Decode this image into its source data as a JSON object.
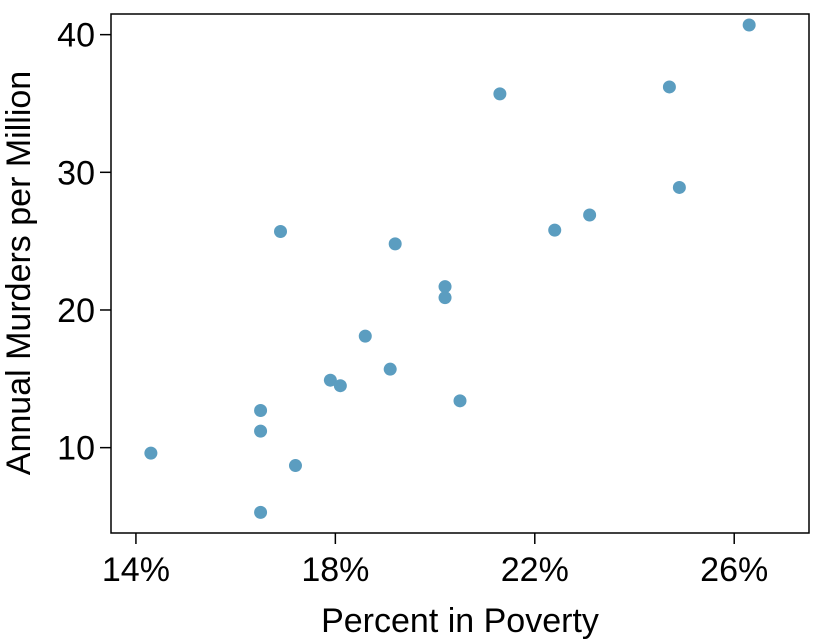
{
  "chart_data": {
    "type": "scatter",
    "xlabel": "Percent in Poverty",
    "ylabel": "Annual Murders per Million",
    "xlim": [
      13.5,
      27.5
    ],
    "ylim": [
      3.8,
      41.5
    ],
    "xticks": [
      14,
      18,
      22,
      26
    ],
    "xtick_labels": [
      "14%",
      "18%",
      "22%",
      "26%"
    ],
    "yticks": [
      10,
      20,
      30,
      40
    ],
    "ytick_labels": [
      "10",
      "20",
      "30",
      "40"
    ],
    "grid": false,
    "point_color": "#5b9dc0",
    "points": [
      {
        "x": 14.3,
        "y": 9.6
      },
      {
        "x": 16.5,
        "y": 12.7
      },
      {
        "x": 16.5,
        "y": 11.2
      },
      {
        "x": 16.5,
        "y": 5.3
      },
      {
        "x": 16.9,
        "y": 25.7
      },
      {
        "x": 17.2,
        "y": 8.7
      },
      {
        "x": 17.9,
        "y": 14.9
      },
      {
        "x": 18.1,
        "y": 14.5
      },
      {
        "x": 18.6,
        "y": 18.1
      },
      {
        "x": 19.1,
        "y": 15.7
      },
      {
        "x": 19.2,
        "y": 24.8
      },
      {
        "x": 20.2,
        "y": 21.7
      },
      {
        "x": 20.2,
        "y": 20.9
      },
      {
        "x": 20.5,
        "y": 13.4
      },
      {
        "x": 21.3,
        "y": 35.7
      },
      {
        "x": 22.4,
        "y": 25.8
      },
      {
        "x": 23.1,
        "y": 26.9
      },
      {
        "x": 24.7,
        "y": 36.2
      },
      {
        "x": 24.9,
        "y": 28.9
      },
      {
        "x": 26.3,
        "y": 40.7
      }
    ]
  }
}
